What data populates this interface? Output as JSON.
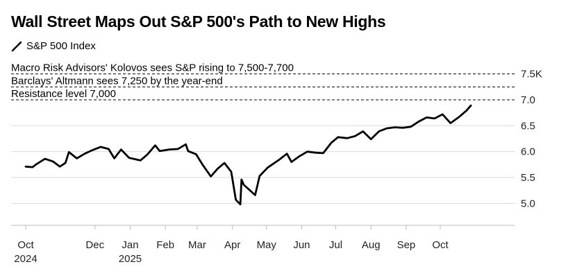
{
  "title": "Wall Street Maps Out S&P 500's Path to New Highs",
  "legend": {
    "label": "S&P 500 Index"
  },
  "colors": {
    "line": "#000000",
    "grid": "#d9d9d9",
    "dash": "#000000",
    "text": "#000000"
  },
  "chart_data": {
    "type": "line",
    "title": "Wall Street Maps Out S&P 500's Path to New Highs",
    "xlabel": "",
    "ylabel": "",
    "ylim": [
      4.75,
      7.75
    ],
    "y_unit": "K",
    "yticks": [
      {
        "value": 5.0,
        "label": "5.0"
      },
      {
        "value": 5.5,
        "label": "5.5"
      },
      {
        "value": 6.0,
        "label": "6.0"
      },
      {
        "value": 6.5,
        "label": "6.5"
      },
      {
        "value": 7.0,
        "label": "7.0"
      },
      {
        "value": 7.5,
        "label": "7.5K"
      }
    ],
    "xlim": [
      "2024-10-01",
      "2026-01-05"
    ],
    "xticks": [
      {
        "date": "2024-10-01",
        "label": "Oct",
        "sublabel": "2024"
      },
      {
        "date": "2024-12-01",
        "label": "Dec",
        "sublabel": ""
      },
      {
        "date": "2025-01-01",
        "label": "Jan",
        "sublabel": "2025"
      },
      {
        "date": "2025-02-01",
        "label": "Feb",
        "sublabel": ""
      },
      {
        "date": "2025-03-01",
        "label": "Mar",
        "sublabel": ""
      },
      {
        "date": "2025-04-01",
        "label": "Apr",
        "sublabel": ""
      },
      {
        "date": "2025-05-01",
        "label": "May",
        "sublabel": ""
      },
      {
        "date": "2025-06-01",
        "label": "Jun",
        "sublabel": ""
      },
      {
        "date": "2025-07-01",
        "label": "Jul",
        "sublabel": ""
      },
      {
        "date": "2025-08-01",
        "label": "Aug",
        "sublabel": ""
      },
      {
        "date": "2025-09-01",
        "label": "Sep",
        "sublabel": ""
      },
      {
        "date": "2025-10-01",
        "label": "Oct",
        "sublabel": ""
      }
    ],
    "annotations": [
      {
        "text": "Macro Risk Advisors' Kolovos sees S&P rising to 7,500-7,700",
        "y": 7.5
      },
      {
        "text": "Barclays' Altmann sees 7,250 by the year-end",
        "y": 7.25
      },
      {
        "text": "Resistance level 7,000",
        "y": 7.0
      }
    ],
    "series": [
      {
        "name": "S&P 500 Index",
        "points": [
          [
            "2024-10-01",
            5.71
          ],
          [
            "2024-10-07",
            5.7
          ],
          [
            "2024-10-10",
            5.75
          ],
          [
            "2024-10-18",
            5.86
          ],
          [
            "2024-10-25",
            5.81
          ],
          [
            "2024-10-31",
            5.71
          ],
          [
            "2024-11-05",
            5.78
          ],
          [
            "2024-11-08",
            5.99
          ],
          [
            "2024-11-15",
            5.87
          ],
          [
            "2024-11-22",
            5.96
          ],
          [
            "2024-11-29",
            6.03
          ],
          [
            "2024-12-06",
            6.09
          ],
          [
            "2024-12-13",
            6.05
          ],
          [
            "2024-12-18",
            5.87
          ],
          [
            "2024-12-24",
            6.04
          ],
          [
            "2024-12-31",
            5.88
          ],
          [
            "2025-01-10",
            5.83
          ],
          [
            "2025-01-16",
            5.94
          ],
          [
            "2025-01-23",
            6.12
          ],
          [
            "2025-01-27",
            6.01
          ],
          [
            "2025-02-04",
            6.04
          ],
          [
            "2025-02-12",
            6.05
          ],
          [
            "2025-02-19",
            6.14
          ],
          [
            "2025-02-21",
            6.01
          ],
          [
            "2025-02-28",
            5.95
          ],
          [
            "2025-03-06",
            5.74
          ],
          [
            "2025-03-13",
            5.52
          ],
          [
            "2025-03-19",
            5.67
          ],
          [
            "2025-03-25",
            5.78
          ],
          [
            "2025-03-31",
            5.61
          ],
          [
            "2025-04-04",
            5.07
          ],
          [
            "2025-04-08",
            4.98
          ],
          [
            "2025-04-09",
            5.46
          ],
          [
            "2025-04-11",
            5.36
          ],
          [
            "2025-04-21",
            5.16
          ],
          [
            "2025-04-25",
            5.53
          ],
          [
            "2025-05-02",
            5.69
          ],
          [
            "2025-05-12",
            5.84
          ],
          [
            "2025-05-19",
            5.96
          ],
          [
            "2025-05-23",
            5.8
          ],
          [
            "2025-05-30",
            5.91
          ],
          [
            "2025-06-06",
            6.0
          ],
          [
            "2025-06-13",
            5.98
          ],
          [
            "2025-06-20",
            5.97
          ],
          [
            "2025-06-27",
            6.17
          ],
          [
            "2025-07-03",
            6.28
          ],
          [
            "2025-07-11",
            6.26
          ],
          [
            "2025-07-18",
            6.3
          ],
          [
            "2025-07-25",
            6.39
          ],
          [
            "2025-08-01",
            6.24
          ],
          [
            "2025-08-08",
            6.39
          ],
          [
            "2025-08-15",
            6.45
          ],
          [
            "2025-08-22",
            6.47
          ],
          [
            "2025-08-29",
            6.46
          ],
          [
            "2025-09-05",
            6.48
          ],
          [
            "2025-09-12",
            6.58
          ],
          [
            "2025-09-19",
            6.66
          ],
          [
            "2025-09-26",
            6.64
          ],
          [
            "2025-10-03",
            6.72
          ],
          [
            "2025-10-10",
            6.55
          ],
          [
            "2025-10-17",
            6.66
          ],
          [
            "2025-10-24",
            6.79
          ],
          [
            "2025-10-28",
            6.89
          ]
        ]
      }
    ],
    "grid": true,
    "legend_position": "top-left"
  }
}
